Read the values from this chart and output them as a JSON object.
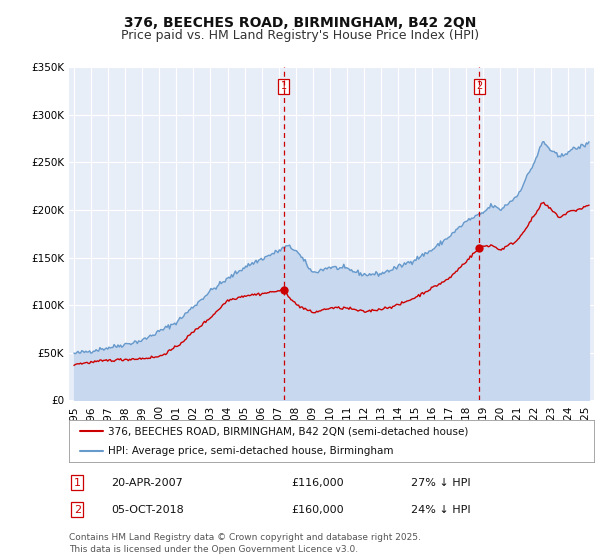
{
  "title": "376, BEECHES ROAD, BIRMINGHAM, B42 2QN",
  "subtitle": "Price paid vs. HM Land Registry's House Price Index (HPI)",
  "ylim": [
    0,
    350000
  ],
  "yticks": [
    0,
    50000,
    100000,
    150000,
    200000,
    250000,
    300000,
    350000
  ],
  "ytick_labels": [
    "£0",
    "£50K",
    "£100K",
    "£150K",
    "£200K",
    "£250K",
    "£300K",
    "£350K"
  ],
  "xlim_start": 1994.7,
  "xlim_end": 2025.5,
  "plot_bg_color": "#e8eef8",
  "hpi_color": "#6699cc",
  "hpi_fill_color": "#c8d8ee",
  "price_color": "#cc0000",
  "vline_color": "#cc0000",
  "grid_color": "#ffffff",
  "purchase1_x": 2007.3,
  "purchase1_y": 116000,
  "purchase2_x": 2018.76,
  "purchase2_y": 160000,
  "legend_line1": "376, BEECHES ROAD, BIRMINGHAM, B42 2QN (semi-detached house)",
  "legend_line2": "HPI: Average price, semi-detached house, Birmingham",
  "table_row1": [
    "1",
    "20-APR-2007",
    "£116,000",
    "27% ↓ HPI"
  ],
  "table_row2": [
    "2",
    "05-OCT-2018",
    "£160,000",
    "24% ↓ HPI"
  ],
  "footer": "Contains HM Land Registry data © Crown copyright and database right 2025.\nThis data is licensed under the Open Government Licence v3.0.",
  "title_fontsize": 10,
  "subtitle_fontsize": 9,
  "tick_fontsize": 7.5,
  "legend_fontsize": 7.5,
  "table_fontsize": 8,
  "footer_fontsize": 6.5
}
